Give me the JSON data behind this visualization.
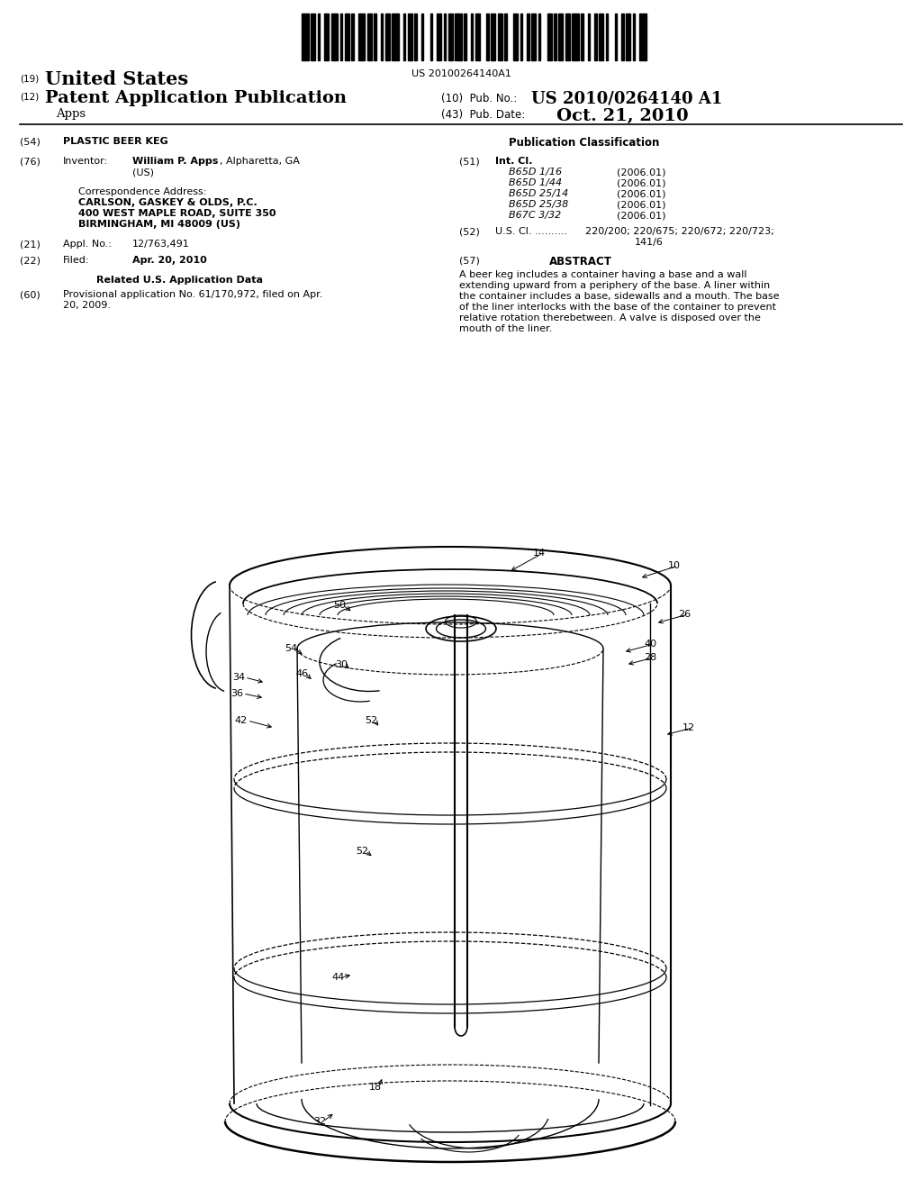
{
  "bg_color": "#ffffff",
  "barcode_text": "US 20100264140A1",
  "pub_no_value": "US 2010/0264140 A1",
  "pub_date_value": "Oct. 21, 2010",
  "int_cl_entries": [
    [
      "B65D 1/16",
      "(2006.01)"
    ],
    [
      "B65D 1/44",
      "(2006.01)"
    ],
    [
      "B65D 25/14",
      "(2006.01)"
    ],
    [
      "B65D 25/38",
      "(2006.01)"
    ],
    [
      "B67C 3/32",
      "(2006.01)"
    ]
  ],
  "abstract_text": "A beer keg includes a container having a base and a wall extending upward from a periphery of the base. A liner within the container includes a base, sidewalls and a mouth. The base of the liner interlocks with the base of the container to prevent relative rotation therebetween. A valve is disposed over the mouth of the liner.",
  "font_color": "#000000"
}
